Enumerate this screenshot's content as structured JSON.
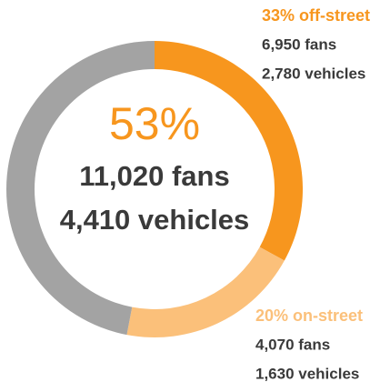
{
  "chart_data": {
    "type": "pie",
    "donut": true,
    "categories": [
      "33% off-street",
      "20% on-street",
      null
    ],
    "values": [
      33,
      20,
      47
    ],
    "colors": [
      "#f7961e",
      "#fbc07a",
      "#a3a3a3"
    ],
    "center_label": "53%",
    "center_lines": [
      "11,020 fans",
      "4,410 vehicles"
    ],
    "details": [
      [
        "6,950 fans",
        "2,780 vehicles"
      ],
      [
        "4,070 fans",
        "1,630 vehicles"
      ]
    ]
  }
}
